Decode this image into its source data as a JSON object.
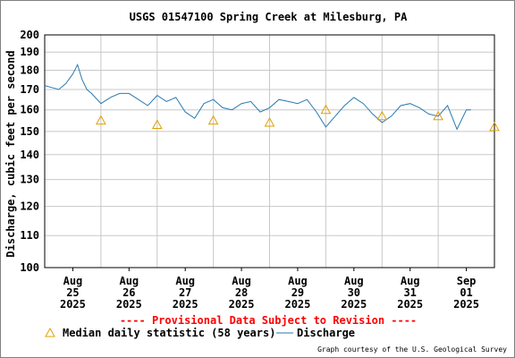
{
  "chart_data": {
    "type": "line",
    "title": "USGS 01547100 Spring Creek at Milesburg, PA",
    "ylabel": "Discharge, cubic feet per second",
    "xlabel": "",
    "ylim": [
      100,
      200
    ],
    "y_scale": "log",
    "y_ticks": [
      100,
      110,
      120,
      130,
      140,
      150,
      160,
      170,
      180,
      190,
      200
    ],
    "xlim": [
      "2025-08-24T12:00",
      "2025-09-01T12:00"
    ],
    "x_ticks": [
      {
        "month": "Aug",
        "day": "25",
        "year": "2025"
      },
      {
        "month": "Aug",
        "day": "26",
        "year": "2025"
      },
      {
        "month": "Aug",
        "day": "27",
        "year": "2025"
      },
      {
        "month": "Aug",
        "day": "28",
        "year": "2025"
      },
      {
        "month": "Aug",
        "day": "29",
        "year": "2025"
      },
      {
        "month": "Aug",
        "day": "30",
        "year": "2025"
      },
      {
        "month": "Aug",
        "day": "31",
        "year": "2025"
      },
      {
        "month": "Sep",
        "day": "01",
        "year": "2025"
      }
    ],
    "grid": true,
    "series": [
      {
        "name": "Discharge",
        "color": "#2a7ab0",
        "x": [
          "2025-08-24T12:00",
          "2025-08-24T15:00",
          "2025-08-24T18:00",
          "2025-08-24T21:00",
          "2025-08-25T00:00",
          "2025-08-25T02:00",
          "2025-08-25T04:00",
          "2025-08-25T06:00",
          "2025-08-25T08:00",
          "2025-08-25T12:00",
          "2025-08-25T16:00",
          "2025-08-25T20:00",
          "2025-08-26T00:00",
          "2025-08-26T04:00",
          "2025-08-26T08:00",
          "2025-08-26T12:00",
          "2025-08-26T16:00",
          "2025-08-26T20:00",
          "2025-08-27T00:00",
          "2025-08-27T04:00",
          "2025-08-27T08:00",
          "2025-08-27T12:00",
          "2025-08-27T16:00",
          "2025-08-27T20:00",
          "2025-08-28T00:00",
          "2025-08-28T04:00",
          "2025-08-28T08:00",
          "2025-08-28T12:00",
          "2025-08-28T16:00",
          "2025-08-28T20:00",
          "2025-08-29T00:00",
          "2025-08-29T04:00",
          "2025-08-29T08:00",
          "2025-08-29T12:00",
          "2025-08-29T16:00",
          "2025-08-29T20:00",
          "2025-08-30T00:00",
          "2025-08-30T04:00",
          "2025-08-30T08:00",
          "2025-08-30T12:00",
          "2025-08-30T16:00",
          "2025-08-30T20:00",
          "2025-08-31T00:00",
          "2025-08-31T04:00",
          "2025-08-31T08:00",
          "2025-08-31T12:00",
          "2025-08-31T16:00",
          "2025-08-31T20:00",
          "2025-09-01T00:00",
          "2025-09-01T02:00"
        ],
        "values": [
          172,
          171,
          170,
          173,
          178,
          183,
          175,
          170,
          168,
          163,
          166,
          168,
          168,
          165,
          162,
          167,
          164,
          166,
          159,
          156,
          163,
          165,
          161,
          160,
          163,
          164,
          159,
          161,
          165,
          164,
          163,
          165,
          159,
          152,
          157,
          162,
          166,
          163,
          158,
          154,
          157,
          162,
          163,
          161,
          158,
          157,
          162,
          151,
          160,
          160
        ]
      },
      {
        "name": "Median daily statistic (58 years)",
        "color": "#e0a000",
        "marker": "triangle",
        "x": [
          "2025-08-25T12:00",
          "2025-08-26T12:00",
          "2025-08-27T12:00",
          "2025-08-28T12:00",
          "2025-08-29T12:00",
          "2025-08-30T12:00",
          "2025-08-31T12:00",
          "2025-09-01T12:00"
        ],
        "values": [
          155,
          153,
          155,
          154,
          160,
          157,
          157,
          152
        ]
      }
    ]
  },
  "notice": "---- Provisional Data Subject to Revision ----",
  "legend": {
    "median_label": "Median daily statistic (58 years)",
    "discharge_label": "Discharge"
  },
  "credit": "Graph courtesy of the U.S. Geological Survey",
  "colors": {
    "discharge": "#2a7ab0",
    "median": "#e0a000",
    "notice": "#ff0000",
    "grid": "#c8c8c8"
  }
}
